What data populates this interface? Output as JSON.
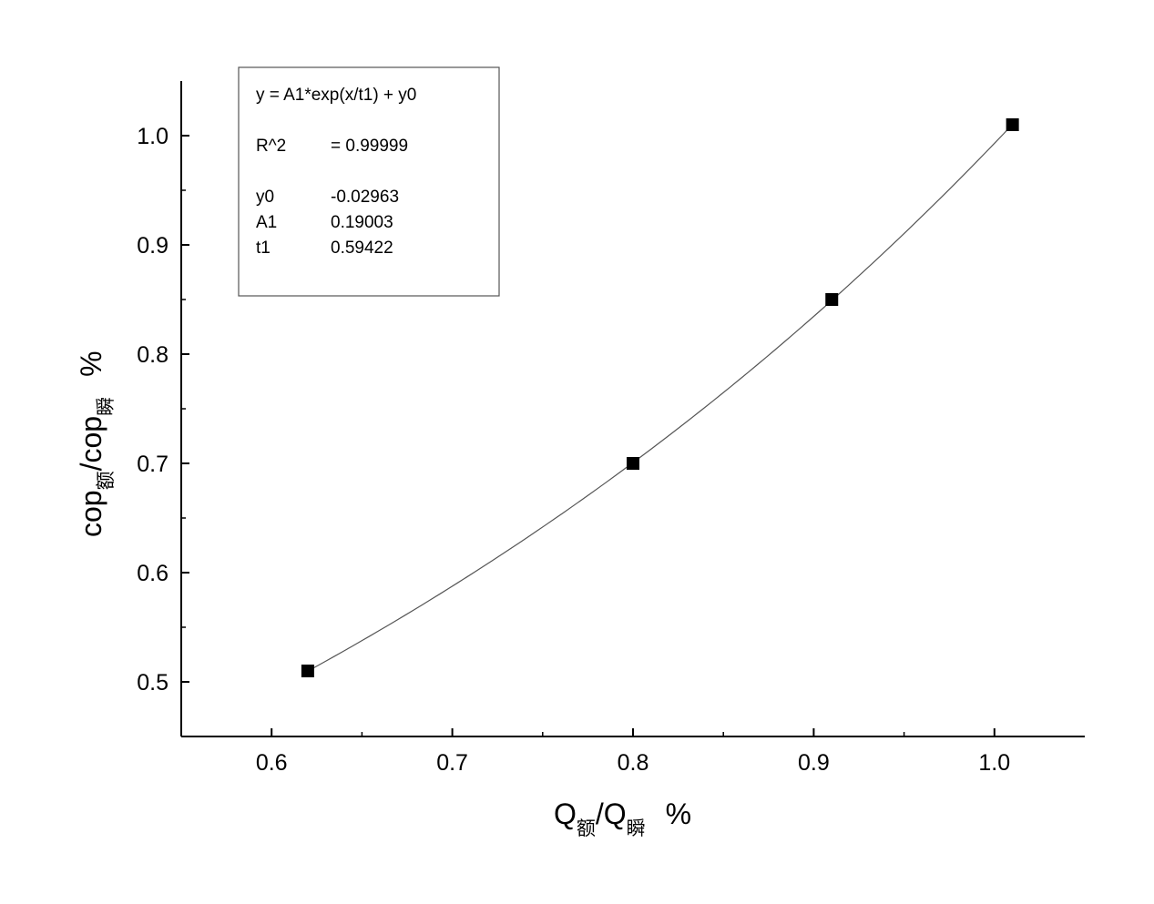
{
  "chart_data": {
    "type": "scatter",
    "x": [
      0.62,
      0.8,
      0.91,
      1.01
    ],
    "y": [
      0.51,
      0.7,
      0.85,
      1.01
    ],
    "xlim": [
      0.55,
      1.05
    ],
    "ylim": [
      0.45,
      1.05
    ],
    "xticks": [
      0.6,
      0.7,
      0.8,
      0.9,
      1.0
    ],
    "yticks": [
      0.5,
      0.6,
      0.7,
      0.8,
      0.9,
      1.0
    ],
    "xtick_labels": [
      "0.6",
      "0.7",
      "0.8",
      "0.9",
      "1.0"
    ],
    "ytick_labels": [
      "0.5",
      "0.6",
      "0.7",
      "0.8",
      "0.9",
      "1.0"
    ],
    "xlabel": {
      "main1": "Q",
      "sub1": "额",
      "main2": "/Q",
      "sub2": "瞬",
      "unit": "%"
    },
    "ylabel": {
      "main1": "cop",
      "sub1": "额",
      "main2": "/cop",
      "sub2": "瞬",
      "unit": "%"
    },
    "fit": {
      "equation": "y = A1*exp(x/t1) + y0",
      "r2_label": "R^2",
      "r2_value": "=  0.99999",
      "params": [
        {
          "name": "y0",
          "value": "-0.02963"
        },
        {
          "name": "A1",
          "value": "0.19003"
        },
        {
          "name": "t1",
          "value": "0.59422"
        }
      ],
      "y0": -0.02963,
      "A1": 0.19003,
      "t1": 0.59422,
      "x_range": [
        0.62,
        1.01
      ]
    },
    "marker": "square",
    "marker_color": "#000000",
    "line_color": "#555555",
    "grid": false,
    "legend_position": "top-left"
  }
}
